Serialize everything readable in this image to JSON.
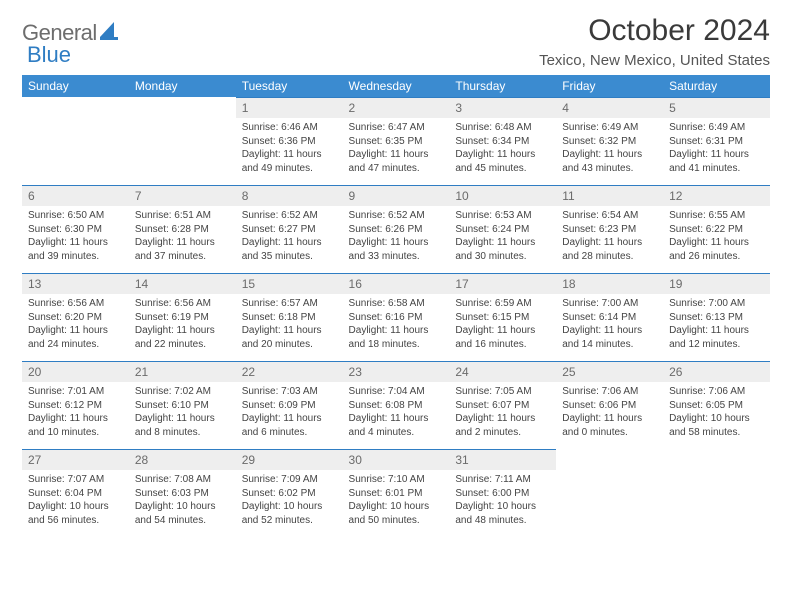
{
  "logo": {
    "word1": "General",
    "word2": "Blue"
  },
  "title": "October 2024",
  "location": "Texico, New Mexico, United States",
  "colors": {
    "header_bg": "#3b8bd0",
    "header_text": "#ffffff",
    "daynum_bg": "#eeeeee",
    "day_border": "#2f7dc3",
    "logo_gray": "#6d6d6d",
    "logo_blue": "#2f7dc3",
    "body_text": "#444444"
  },
  "weekdays": [
    "Sunday",
    "Monday",
    "Tuesday",
    "Wednesday",
    "Thursday",
    "Friday",
    "Saturday"
  ],
  "weeks": [
    [
      {
        "n": "",
        "sunrise": "",
        "sunset": "",
        "daylight": ""
      },
      {
        "n": "",
        "sunrise": "",
        "sunset": "",
        "daylight": ""
      },
      {
        "n": "1",
        "sunrise": "Sunrise: 6:46 AM",
        "sunset": "Sunset: 6:36 PM",
        "daylight": "Daylight: 11 hours and 49 minutes."
      },
      {
        "n": "2",
        "sunrise": "Sunrise: 6:47 AM",
        "sunset": "Sunset: 6:35 PM",
        "daylight": "Daylight: 11 hours and 47 minutes."
      },
      {
        "n": "3",
        "sunrise": "Sunrise: 6:48 AM",
        "sunset": "Sunset: 6:34 PM",
        "daylight": "Daylight: 11 hours and 45 minutes."
      },
      {
        "n": "4",
        "sunrise": "Sunrise: 6:49 AM",
        "sunset": "Sunset: 6:32 PM",
        "daylight": "Daylight: 11 hours and 43 minutes."
      },
      {
        "n": "5",
        "sunrise": "Sunrise: 6:49 AM",
        "sunset": "Sunset: 6:31 PM",
        "daylight": "Daylight: 11 hours and 41 minutes."
      }
    ],
    [
      {
        "n": "6",
        "sunrise": "Sunrise: 6:50 AM",
        "sunset": "Sunset: 6:30 PM",
        "daylight": "Daylight: 11 hours and 39 minutes."
      },
      {
        "n": "7",
        "sunrise": "Sunrise: 6:51 AM",
        "sunset": "Sunset: 6:28 PM",
        "daylight": "Daylight: 11 hours and 37 minutes."
      },
      {
        "n": "8",
        "sunrise": "Sunrise: 6:52 AM",
        "sunset": "Sunset: 6:27 PM",
        "daylight": "Daylight: 11 hours and 35 minutes."
      },
      {
        "n": "9",
        "sunrise": "Sunrise: 6:52 AM",
        "sunset": "Sunset: 6:26 PM",
        "daylight": "Daylight: 11 hours and 33 minutes."
      },
      {
        "n": "10",
        "sunrise": "Sunrise: 6:53 AM",
        "sunset": "Sunset: 6:24 PM",
        "daylight": "Daylight: 11 hours and 30 minutes."
      },
      {
        "n": "11",
        "sunrise": "Sunrise: 6:54 AM",
        "sunset": "Sunset: 6:23 PM",
        "daylight": "Daylight: 11 hours and 28 minutes."
      },
      {
        "n": "12",
        "sunrise": "Sunrise: 6:55 AM",
        "sunset": "Sunset: 6:22 PM",
        "daylight": "Daylight: 11 hours and 26 minutes."
      }
    ],
    [
      {
        "n": "13",
        "sunrise": "Sunrise: 6:56 AM",
        "sunset": "Sunset: 6:20 PM",
        "daylight": "Daylight: 11 hours and 24 minutes."
      },
      {
        "n": "14",
        "sunrise": "Sunrise: 6:56 AM",
        "sunset": "Sunset: 6:19 PM",
        "daylight": "Daylight: 11 hours and 22 minutes."
      },
      {
        "n": "15",
        "sunrise": "Sunrise: 6:57 AM",
        "sunset": "Sunset: 6:18 PM",
        "daylight": "Daylight: 11 hours and 20 minutes."
      },
      {
        "n": "16",
        "sunrise": "Sunrise: 6:58 AM",
        "sunset": "Sunset: 6:16 PM",
        "daylight": "Daylight: 11 hours and 18 minutes."
      },
      {
        "n": "17",
        "sunrise": "Sunrise: 6:59 AM",
        "sunset": "Sunset: 6:15 PM",
        "daylight": "Daylight: 11 hours and 16 minutes."
      },
      {
        "n": "18",
        "sunrise": "Sunrise: 7:00 AM",
        "sunset": "Sunset: 6:14 PM",
        "daylight": "Daylight: 11 hours and 14 minutes."
      },
      {
        "n": "19",
        "sunrise": "Sunrise: 7:00 AM",
        "sunset": "Sunset: 6:13 PM",
        "daylight": "Daylight: 11 hours and 12 minutes."
      }
    ],
    [
      {
        "n": "20",
        "sunrise": "Sunrise: 7:01 AM",
        "sunset": "Sunset: 6:12 PM",
        "daylight": "Daylight: 11 hours and 10 minutes."
      },
      {
        "n": "21",
        "sunrise": "Sunrise: 7:02 AM",
        "sunset": "Sunset: 6:10 PM",
        "daylight": "Daylight: 11 hours and 8 minutes."
      },
      {
        "n": "22",
        "sunrise": "Sunrise: 7:03 AM",
        "sunset": "Sunset: 6:09 PM",
        "daylight": "Daylight: 11 hours and 6 minutes."
      },
      {
        "n": "23",
        "sunrise": "Sunrise: 7:04 AM",
        "sunset": "Sunset: 6:08 PM",
        "daylight": "Daylight: 11 hours and 4 minutes."
      },
      {
        "n": "24",
        "sunrise": "Sunrise: 7:05 AM",
        "sunset": "Sunset: 6:07 PM",
        "daylight": "Daylight: 11 hours and 2 minutes."
      },
      {
        "n": "25",
        "sunrise": "Sunrise: 7:06 AM",
        "sunset": "Sunset: 6:06 PM",
        "daylight": "Daylight: 11 hours and 0 minutes."
      },
      {
        "n": "26",
        "sunrise": "Sunrise: 7:06 AM",
        "sunset": "Sunset: 6:05 PM",
        "daylight": "Daylight: 10 hours and 58 minutes."
      }
    ],
    [
      {
        "n": "27",
        "sunrise": "Sunrise: 7:07 AM",
        "sunset": "Sunset: 6:04 PM",
        "daylight": "Daylight: 10 hours and 56 minutes."
      },
      {
        "n": "28",
        "sunrise": "Sunrise: 7:08 AM",
        "sunset": "Sunset: 6:03 PM",
        "daylight": "Daylight: 10 hours and 54 minutes."
      },
      {
        "n": "29",
        "sunrise": "Sunrise: 7:09 AM",
        "sunset": "Sunset: 6:02 PM",
        "daylight": "Daylight: 10 hours and 52 minutes."
      },
      {
        "n": "30",
        "sunrise": "Sunrise: 7:10 AM",
        "sunset": "Sunset: 6:01 PM",
        "daylight": "Daylight: 10 hours and 50 minutes."
      },
      {
        "n": "31",
        "sunrise": "Sunrise: 7:11 AM",
        "sunset": "Sunset: 6:00 PM",
        "daylight": "Daylight: 10 hours and 48 minutes."
      },
      {
        "n": "",
        "sunrise": "",
        "sunset": "",
        "daylight": ""
      },
      {
        "n": "",
        "sunrise": "",
        "sunset": "",
        "daylight": ""
      }
    ]
  ]
}
